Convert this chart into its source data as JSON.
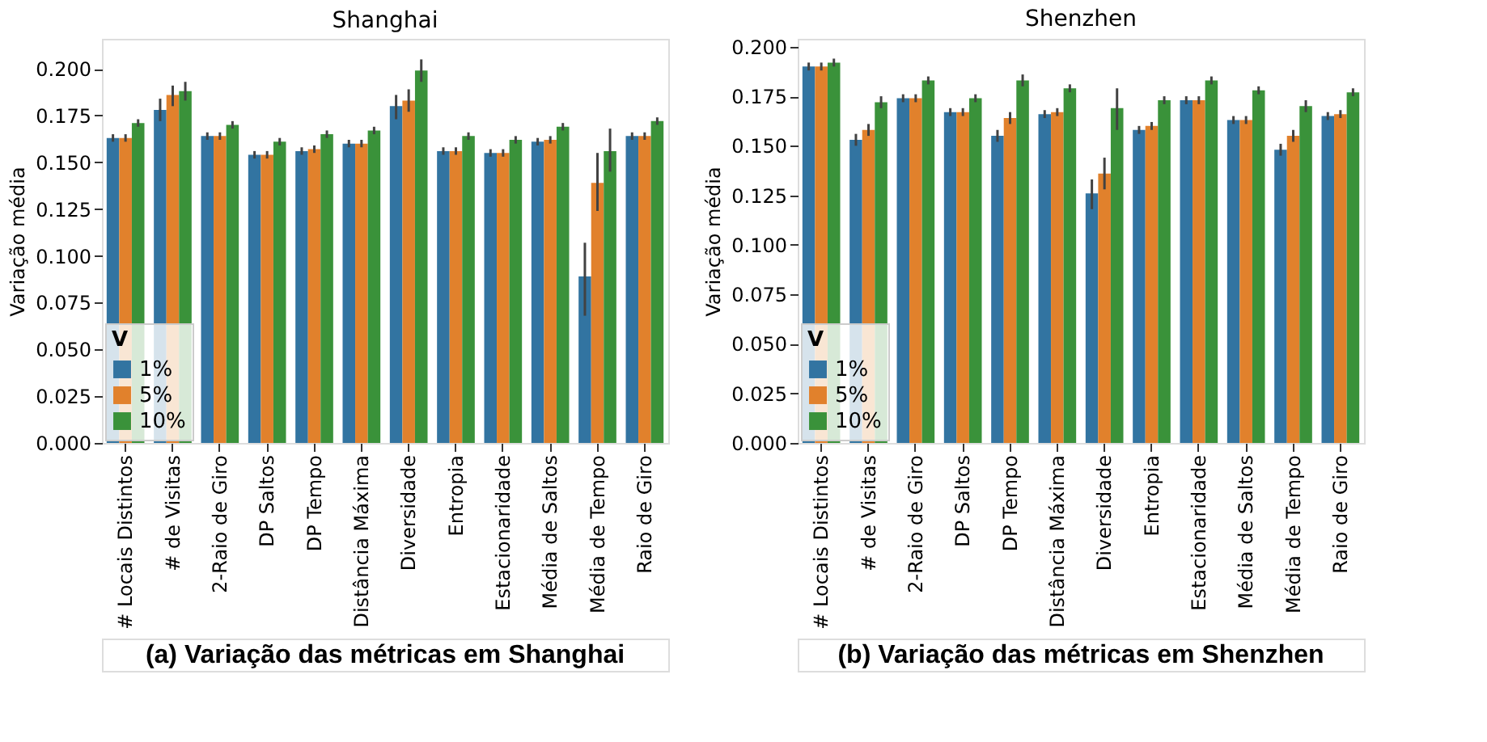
{
  "chart_data": [
    {
      "type": "bar",
      "title": "Shanghai",
      "ylabel": "Variação média",
      "legend_title": "V",
      "legend": "bottom left",
      "grid": false,
      "categories": [
        "# Locais Distintos",
        "# de Visitas",
        "2-Raio de Giro",
        "DP Saltos",
        "DP Tempo",
        "Distância Máxima",
        "Diversidade",
        "Entropia",
        "Estacionaridade",
        "Média de Saltos",
        "Média de Tempo",
        "Raio de Giro"
      ],
      "ylim": [
        0,
        0.216
      ],
      "yticks": [
        {
          "value": 0,
          "label": "0.000"
        },
        0.025,
        {
          "value": 0.05,
          "label": "0.050"
        },
        0.075,
        {
          "value": 0.1,
          "label": "0.100"
        },
        0.125,
        {
          "value": 0.15,
          "label": "0.150"
        },
        0.175,
        {
          "value": 0.2,
          "label": "0.200"
        }
      ],
      "series": [
        {
          "name": "1%",
          "color": "#3274a1",
          "values": [
            0.163,
            0.178,
            0.164,
            0.154,
            0.156,
            0.16,
            0.18,
            0.156,
            0.155,
            0.161,
            0.089,
            0.164
          ],
          "errors": [
            0.002,
            [
              0.172,
              0.184
            ],
            0.002,
            0.002,
            0.002,
            0.002,
            [
              0.173,
              0.186
            ],
            0.002,
            0.002,
            0.002,
            [
              0.068,
              0.107
            ],
            0.002
          ]
        },
        {
          "name": "5%",
          "color": "#e1812c",
          "values": [
            0.163,
            0.186,
            0.164,
            0.154,
            0.157,
            0.16,
            0.183,
            0.156,
            0.155,
            0.162,
            0.139,
            0.164
          ],
          "errors": [
            0.002,
            [
              0.18,
              0.191
            ],
            0.002,
            0.002,
            0.002,
            0.002,
            [
              0.177,
              0.189
            ],
            0.002,
            0.002,
            0.002,
            [
              0.124,
              0.155
            ],
            0.002
          ]
        },
        {
          "name": "10%",
          "color": "#3a923a",
          "values": [
            0.171,
            0.188,
            0.17,
            0.161,
            0.165,
            0.167,
            0.199,
            0.164,
            0.162,
            0.169,
            0.156,
            0.172
          ],
          "errors": [
            0.002,
            [
              0.183,
              0.193
            ],
            0.002,
            0.002,
            0.002,
            0.002,
            [
              0.193,
              0.205
            ],
            0.002,
            0.002,
            0.002,
            [
              0.145,
              0.168
            ],
            0.002
          ]
        }
      ],
      "annotations": [
        "(a) Variação das métricas em Shanghai"
      ]
    },
    {
      "type": "bar",
      "title": "Shenzhen",
      "ylabel": "Variação média",
      "legend_title": "V",
      "legend": "bottom left",
      "grid": false,
      "categories": [
        "# Locais Distintos",
        "# de Visitas",
        "2-Raio de Giro",
        "DP Saltos",
        "DP Tempo",
        "Distância Máxima",
        "Diversidade",
        "Entropia",
        "Estacionaridade",
        "Média de Saltos",
        "Média de Tempo",
        "Raio de Giro"
      ],
      "ylim": [
        0,
        0.204
      ],
      "yticks": [
        {
          "value": 0,
          "label": "0.000"
        },
        0.025,
        {
          "value": 0.05,
          "label": "0.050"
        },
        0.075,
        {
          "value": 0.1,
          "label": "0.100"
        },
        0.125,
        {
          "value": 0.15,
          "label": "0.150"
        },
        0.175,
        {
          "value": 0.2,
          "label": "0.200"
        }
      ],
      "series": [
        {
          "name": "1%",
          "color": "#3274a1",
          "values": [
            0.19,
            0.153,
            0.174,
            0.167,
            0.155,
            0.166,
            0.126,
            0.158,
            0.173,
            0.163,
            0.148,
            0.165
          ],
          "errors": [
            0.002,
            0.003,
            0.002,
            0.002,
            0.003,
            0.002,
            [
              0.118,
              0.133
            ],
            0.002,
            0.002,
            0.002,
            0.003,
            0.002
          ]
        },
        {
          "name": "5%",
          "color": "#e1812c",
          "values": [
            0.19,
            0.158,
            0.174,
            0.167,
            0.164,
            0.167,
            0.136,
            0.16,
            0.173,
            0.163,
            0.155,
            0.166
          ],
          "errors": [
            0.002,
            0.003,
            0.002,
            0.002,
            0.003,
            0.002,
            [
              0.128,
              0.144
            ],
            0.002,
            0.002,
            0.002,
            0.003,
            0.002
          ]
        },
        {
          "name": "10%",
          "color": "#3a923a",
          "values": [
            0.192,
            0.172,
            0.183,
            0.174,
            0.183,
            0.179,
            0.169,
            0.173,
            0.183,
            0.178,
            0.17,
            0.177
          ],
          "errors": [
            0.002,
            0.003,
            0.002,
            0.002,
            0.003,
            0.002,
            [
              0.158,
              0.179
            ],
            0.002,
            0.002,
            0.002,
            0.003,
            0.002
          ]
        }
      ],
      "annotations": [
        "(b) Variação das métricas em Shenzhen"
      ]
    }
  ]
}
